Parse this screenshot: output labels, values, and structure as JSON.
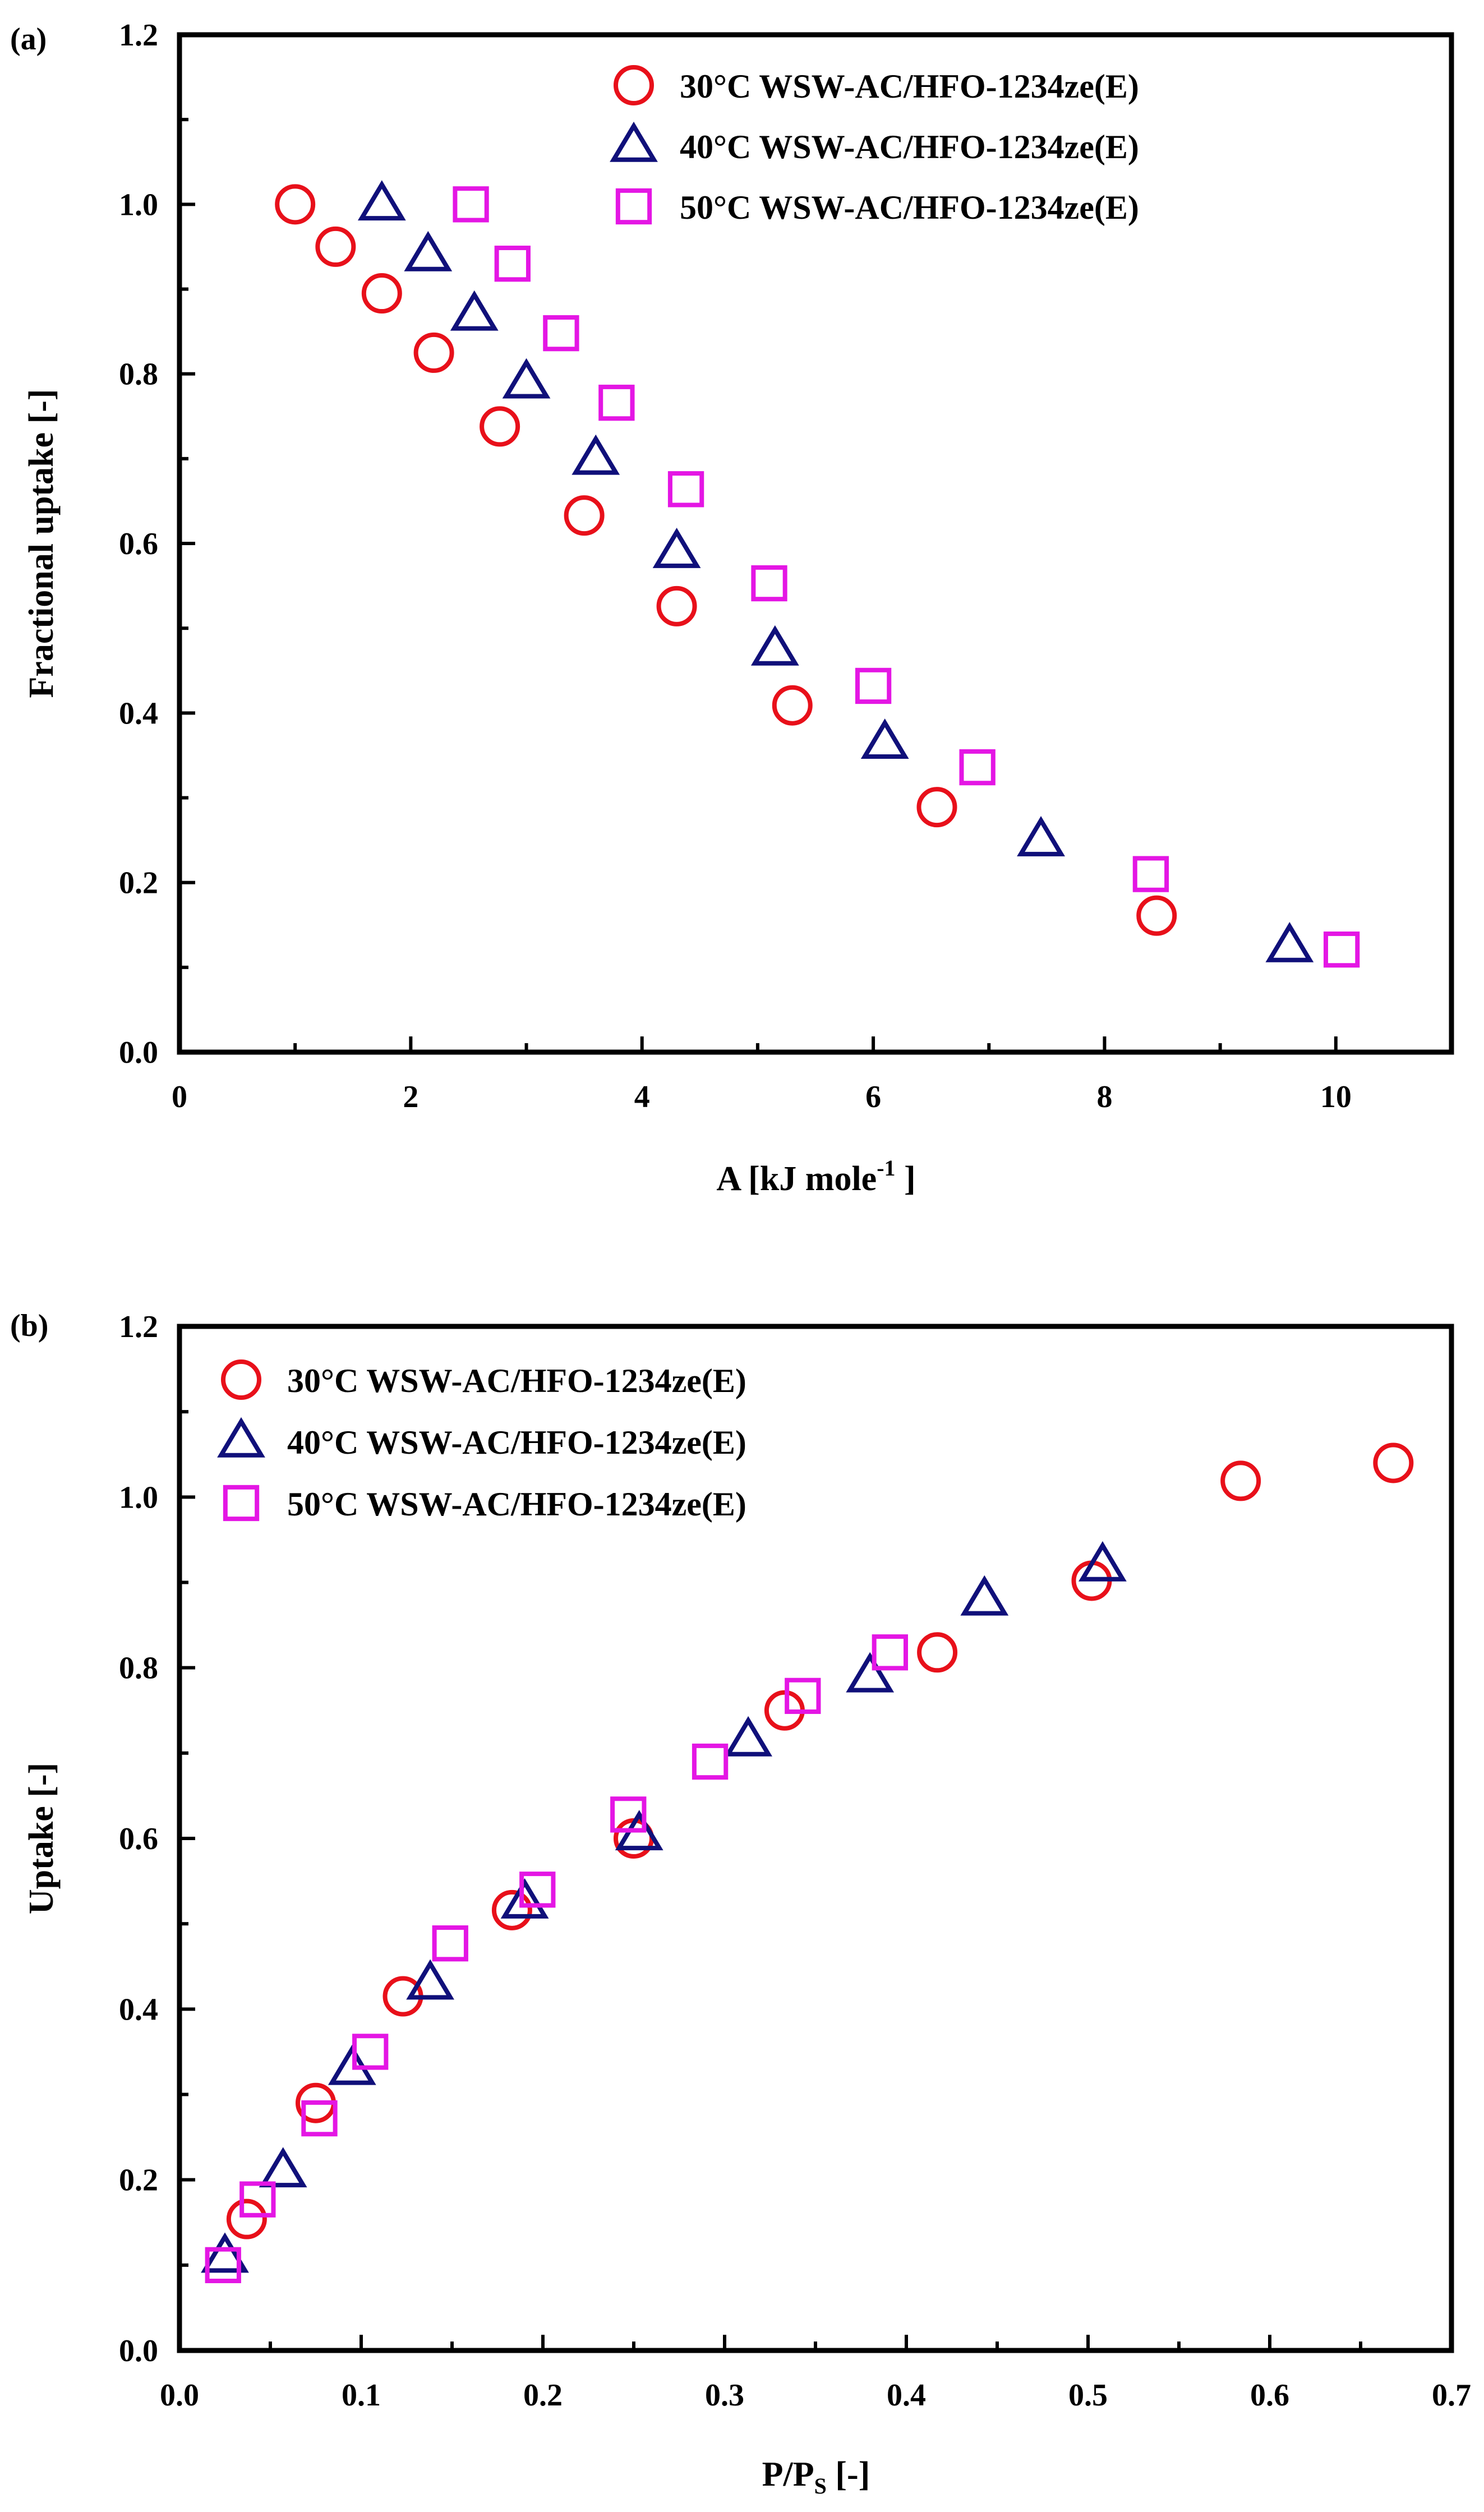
{
  "chart_data": [
    {
      "panel_label": "(a)",
      "type": "scatter",
      "xlabel_main": "A [kJ mole",
      "xlabel_sup": "-1",
      "xlabel_end": " ]",
      "ylabel": "Fractional uptake [-]",
      "xlim": [
        0,
        11
      ],
      "ylim": [
        0,
        1.2
      ],
      "xticks": [
        0,
        2,
        4,
        6,
        8,
        10
      ],
      "yticks": [
        0.0,
        0.2,
        0.4,
        0.6,
        0.8,
        1.0,
        1.2
      ],
      "xtick_labels": [
        "0",
        "2",
        "4",
        "6",
        "8",
        "10"
      ],
      "ytick_labels": [
        "0.0",
        "0.2",
        "0.4",
        "0.6",
        "0.8",
        "1.0",
        "1.2"
      ],
      "legend_position": "top-right",
      "series": [
        {
          "name": "30°C WSW-AC/HFO-1234ze(E)",
          "marker": "circle",
          "color": "#e8101a",
          "x": [
            1.0,
            1.35,
            1.75,
            2.2,
            2.77,
            3.5,
            4.3,
            5.3,
            6.55,
            8.45
          ],
          "y": [
            1.0,
            0.95,
            0.895,
            0.825,
            0.738,
            0.633,
            0.526,
            0.409,
            0.289,
            0.161
          ]
        },
        {
          "name": "40°C WSW-AC/HFO-1234ze(E)",
          "marker": "triangle",
          "color": "#10107a",
          "x": [
            1.75,
            2.15,
            2.55,
            3.0,
            3.6,
            4.3,
            5.15,
            6.1,
            7.45,
            9.6
          ],
          "y": [
            1.0,
            0.94,
            0.87,
            0.79,
            0.7,
            0.59,
            0.475,
            0.365,
            0.25,
            0.125
          ]
        },
        {
          "name": "50°C WSW-AC/HFO-1234ze(E)",
          "marker": "square",
          "color": "#e416e4",
          "x": [
            2.52,
            2.88,
            3.3,
            3.78,
            4.38,
            5.1,
            6.0,
            6.9,
            8.4,
            10.05
          ],
          "y": [
            1.0,
            0.93,
            0.848,
            0.766,
            0.664,
            0.553,
            0.432,
            0.336,
            0.21,
            0.121
          ]
        }
      ]
    },
    {
      "panel_label": "(b)",
      "type": "scatter",
      "xlabel_main": "P/P",
      "xlabel_sub": "S",
      "xlabel_end": " [-]",
      "ylabel": "Uptake [-]",
      "xlim": [
        0,
        0.7
      ],
      "ylim": [
        0,
        1.2
      ],
      "xticks": [
        0,
        0.1,
        0.2,
        0.3,
        0.4,
        0.5,
        0.6,
        0.7
      ],
      "yticks": [
        0.0,
        0.2,
        0.4,
        0.6,
        0.8,
        1.0,
        1.2
      ],
      "xtick_labels": [
        "0.0",
        "0.1",
        "0.2",
        "0.3",
        "0.4",
        "0.5",
        "0.6",
        "0.7"
      ],
      "ytick_labels": [
        "0.0",
        "0.2",
        "0.4",
        "0.6",
        "0.8",
        "1.0",
        "1.2"
      ],
      "legend_position": "top-left",
      "series": [
        {
          "name": "30°C WSW-AC/HFO-1234ze(E)",
          "marker": "circle",
          "color": "#e8101a",
          "x": [
            0.037,
            0.075,
            0.123,
            0.183,
            0.25,
            0.333,
            0.417,
            0.502,
            0.584,
            0.668
          ],
          "y": [
            0.154,
            0.29,
            0.415,
            0.516,
            0.6,
            0.75,
            0.818,
            0.902,
            1.019,
            1.04
          ]
        },
        {
          "name": "40°C WSW-AC/HFO-1234ze(E)",
          "marker": "triangle",
          "color": "#10107a",
          "x": [
            0.025,
            0.057,
            0.095,
            0.138,
            0.19,
            0.253,
            0.313,
            0.38,
            0.443,
            0.508
          ],
          "y": [
            0.11,
            0.21,
            0.33,
            0.43,
            0.525,
            0.605,
            0.715,
            0.79,
            0.88,
            0.92
          ]
        },
        {
          "name": "50°C WSW-AC/HFO-1234ze(E)",
          "marker": "square",
          "color": "#e416e4",
          "x": [
            0.024,
            0.043,
            0.077,
            0.105,
            0.149,
            0.197,
            0.247,
            0.292,
            0.343,
            0.391
          ],
          "y": [
            0.1,
            0.177,
            0.272,
            0.35,
            0.477,
            0.54,
            0.628,
            0.69,
            0.767,
            0.818
          ]
        }
      ]
    }
  ]
}
